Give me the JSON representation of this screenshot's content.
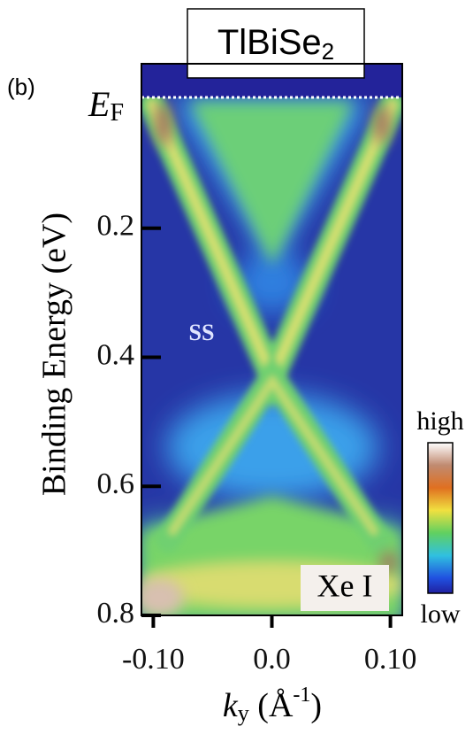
{
  "chart_data": {
    "type": "arpes",
    "title": "TlBiSe",
    "title_sub": "2",
    "panel_label": "(b)",
    "fermi_label": "E",
    "fermi_sub": "F",
    "band_label": "SS",
    "source_label": "Xe I",
    "colorbar_high": "high",
    "colorbar_low": "low",
    "ylabel": "Binding Energy (eV)",
    "xlabel": "k",
    "xlabel_sub": "y",
    "xlabel_unit": " (Å",
    "xlabel_sup": "-1",
    "xlabel_close": ")",
    "xlim": [
      -0.11,
      0.11
    ],
    "ylim": [
      -0.055,
      0.8
    ],
    "xticks": [
      {
        "value": -0.1,
        "label": "-0.10"
      },
      {
        "value": 0,
        "label": "0.0"
      },
      {
        "value": 0.1,
        "label": "0.10"
      }
    ],
    "yticks": [
      0.2,
      0.4,
      0.6,
      0.8
    ],
    "y_inverted": true
  }
}
